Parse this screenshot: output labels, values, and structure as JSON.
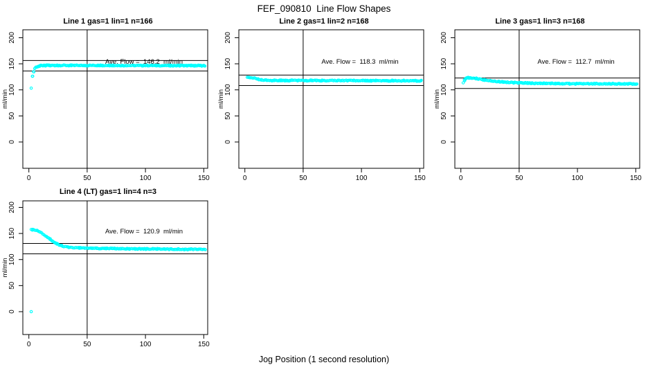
{
  "title": "FEF_090810  Line Flow Shapes",
  "chart_data": {
    "type": "scatter",
    "title": "FEF_090810  Line Flow Shapes",
    "xlabel": "Jog Position (1 second resolution)",
    "ylabel": "ml/min",
    "x_ticks": [
      0,
      50,
      100,
      150
    ],
    "y_ticks": [
      0,
      50,
      100,
      150,
      200
    ],
    "xlim": [
      -5,
      154
    ],
    "ylim": [
      -50,
      215
    ],
    "grid": false,
    "legend": "none",
    "point_color": "#00FFFF",
    "axis_color": "#000000",
    "marker": "open-circle",
    "layout": "2x3 grid, panels at r1c1 r1c2 r1c3 r2c1",
    "panels": [
      {
        "title": "Line 1 gas=1 lin=1 n=166",
        "n": 166,
        "ave_flow": 146.2,
        "annotation": "Ave. Flow =  146.2  ml/min",
        "vline_x": 50,
        "hlines": [
          156.2,
          136.2
        ],
        "x_range": [
          2,
          151
        ],
        "keypoints": [
          [
            2,
            104
          ],
          [
            3,
            126
          ],
          [
            4,
            135
          ],
          [
            5,
            141
          ],
          [
            6,
            143.5
          ],
          [
            8,
            145.5
          ],
          [
            10,
            146.3
          ],
          [
            15,
            146.8
          ],
          [
            30,
            147
          ],
          [
            60,
            146.8
          ],
          [
            100,
            146.6
          ],
          [
            151,
            146.4
          ]
        ],
        "extra_points": []
      },
      {
        "title": "Line 2 gas=1 lin=2 n=168",
        "n": 168,
        "ave_flow": 118.3,
        "annotation": "Ave. Flow =  118.3  ml/min",
        "vline_x": 50,
        "hlines": [
          128.3,
          108.3
        ],
        "x_range": [
          2,
          151
        ],
        "keypoints": [
          [
            2,
            124
          ],
          [
            4,
            124.2
          ],
          [
            6,
            123.5
          ],
          [
            8,
            122.5
          ],
          [
            10,
            121
          ],
          [
            13,
            119.5
          ],
          [
            16,
            118.6
          ],
          [
            20,
            118.2
          ],
          [
            30,
            118
          ],
          [
            60,
            117.9
          ],
          [
            100,
            117.7
          ],
          [
            151,
            117.4
          ]
        ],
        "extra_points": []
      },
      {
        "title": "Line 3 gas=1 lin=3 n=168",
        "n": 168,
        "ave_flow": 112.7,
        "annotation": "Ave. Flow =  112.7  ml/min",
        "vline_x": 50,
        "hlines": [
          122.7,
          102.7
        ],
        "x_range": [
          2,
          151
        ],
        "keypoints": [
          [
            2,
            113
          ],
          [
            3,
            118.5
          ],
          [
            4,
            121.5
          ],
          [
            6,
            123
          ],
          [
            9,
            123
          ],
          [
            12,
            122
          ],
          [
            16,
            120.5
          ],
          [
            20,
            119
          ],
          [
            25,
            117.5
          ],
          [
            30,
            116.3
          ],
          [
            36,
            115.2
          ],
          [
            43,
            114.2
          ],
          [
            50,
            113.5
          ],
          [
            60,
            112.8
          ],
          [
            75,
            112.2
          ],
          [
            100,
            111.8
          ],
          [
            130,
            111.5
          ],
          [
            151,
            111.3
          ]
        ],
        "extra_points": []
      },
      {
        "title": "Line 4 (LT) gas=1 lin=4 n=3",
        "n": 3,
        "ave_flow": 120.9,
        "annotation": "Ave. Flow =  120.9  ml/min",
        "vline_x": 50,
        "hlines": [
          130.9,
          110.9
        ],
        "x_range": [
          2,
          151
        ],
        "keypoints": [
          [
            2,
            157
          ],
          [
            4,
            157.2
          ],
          [
            6,
            156.5
          ],
          [
            8,
            154.5
          ],
          [
            10,
            152
          ],
          [
            12,
            149
          ],
          [
            14,
            146
          ],
          [
            16,
            142.5
          ],
          [
            18,
            139
          ],
          [
            20,
            135.5
          ],
          [
            22,
            132.5
          ],
          [
            24,
            130
          ],
          [
            26,
            128
          ],
          [
            28,
            126.3
          ],
          [
            30,
            125
          ],
          [
            33,
            124
          ],
          [
            36,
            123.3
          ],
          [
            40,
            122.7
          ],
          [
            45,
            122.2
          ],
          [
            50,
            122
          ],
          [
            60,
            121.5
          ],
          [
            75,
            121
          ],
          [
            90,
            120.6
          ],
          [
            110,
            120.2
          ],
          [
            130,
            119.8
          ],
          [
            151,
            119.4
          ]
        ],
        "extra_points": [
          [
            2,
            0
          ]
        ]
      }
    ]
  }
}
